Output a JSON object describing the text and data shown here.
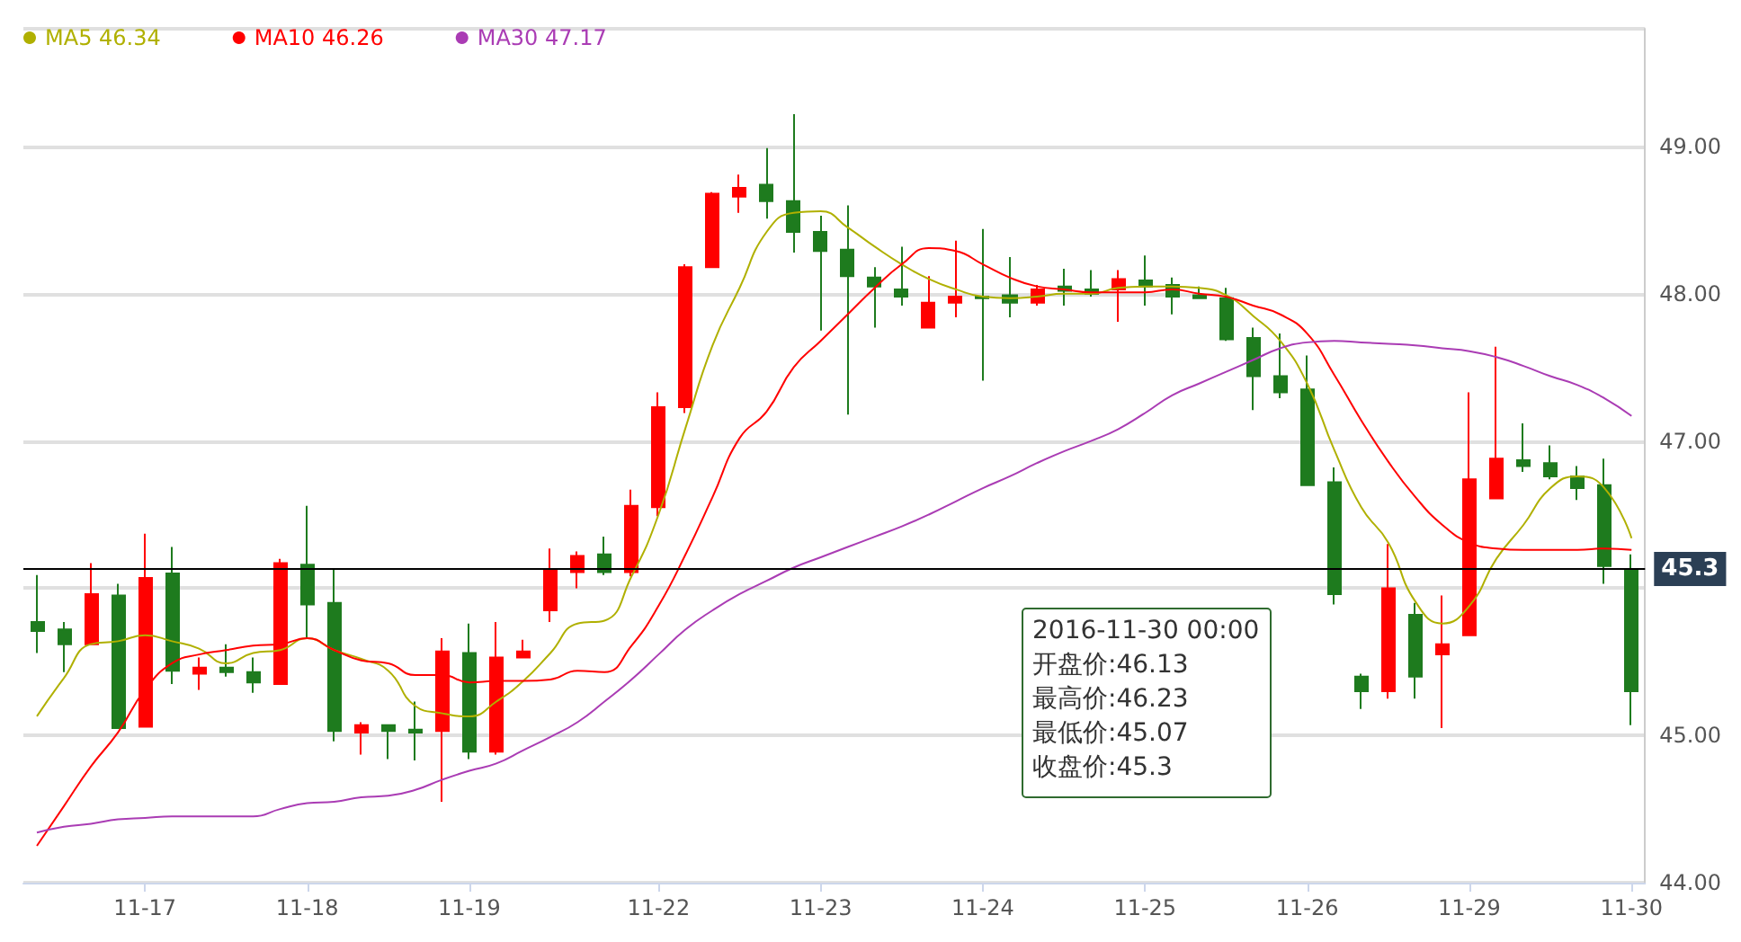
{
  "chart_data": {
    "type": "candlestick",
    "categories": [
      null,
      null,
      null,
      null,
      "11-17",
      null,
      null,
      null,
      null,
      null,
      "11-18",
      null,
      null,
      null,
      null,
      null,
      "11-19",
      null,
      null,
      null,
      null,
      null,
      null,
      "11-22",
      null,
      null,
      null,
      null,
      null,
      "11-23",
      null,
      null,
      null,
      null,
      null,
      "11-24",
      null,
      null,
      null,
      null,
      null,
      "11-25",
      null,
      null,
      null,
      null,
      null,
      "11-26",
      null,
      null,
      null,
      null,
      null,
      "11-29",
      null,
      null,
      null,
      null,
      null,
      "11-30"
    ],
    "ohlc": [
      [
        45.77,
        46.09,
        45.56,
        45.71
      ],
      [
        45.72,
        45.77,
        45.43,
        45.62
      ],
      [
        45.62,
        46.17,
        45.62,
        45.96
      ],
      [
        45.95,
        46.03,
        45.05,
        45.05
      ],
      [
        45.06,
        46.37,
        45.06,
        46.07
      ],
      [
        46.1,
        46.28,
        45.35,
        45.44
      ],
      [
        45.42,
        45.53,
        45.31,
        45.46
      ],
      [
        45.46,
        45.62,
        45.4,
        45.43
      ],
      [
        45.43,
        45.53,
        45.29,
        45.36
      ],
      [
        45.35,
        46.2,
        45.35,
        46.17
      ],
      [
        46.16,
        46.56,
        45.66,
        45.89
      ],
      [
        45.9,
        46.13,
        44.96,
        45.03
      ],
      [
        45.02,
        45.09,
        44.87,
        45.07
      ],
      [
        45.07,
        45.07,
        44.84,
        45.03
      ],
      [
        45.04,
        45.23,
        44.83,
        45.02
      ],
      [
        45.03,
        45.66,
        44.55,
        45.57
      ],
      [
        45.56,
        45.76,
        44.84,
        44.89
      ],
      [
        44.89,
        45.77,
        44.87,
        45.53
      ],
      [
        45.53,
        45.65,
        45.53,
        45.57
      ],
      [
        45.85,
        46.27,
        45.77,
        46.13
      ],
      [
        46.11,
        46.25,
        46.0,
        46.22
      ],
      [
        46.23,
        46.35,
        46.09,
        46.11
      ],
      [
        46.11,
        46.67,
        46.08,
        46.56
      ],
      [
        46.55,
        47.33,
        46.49,
        47.23
      ],
      [
        47.23,
        48.2,
        47.19,
        48.18
      ],
      [
        48.18,
        48.69,
        48.18,
        48.68
      ],
      [
        48.66,
        48.81,
        48.55,
        48.72
      ],
      [
        48.74,
        48.99,
        48.51,
        48.63
      ],
      [
        48.63,
        49.22,
        48.28,
        48.42
      ],
      [
        48.42,
        48.53,
        47.75,
        48.29
      ],
      [
        48.3,
        48.6,
        47.18,
        48.12
      ],
      [
        48.11,
        48.18,
        47.77,
        48.05
      ],
      [
        48.03,
        48.32,
        47.92,
        47.98
      ],
      [
        47.77,
        48.12,
        47.77,
        47.94
      ],
      [
        47.94,
        48.36,
        47.84,
        47.98
      ],
      [
        47.98,
        48.44,
        47.41,
        47.97
      ],
      [
        47.99,
        48.25,
        47.84,
        47.94
      ],
      [
        47.94,
        48.06,
        47.92,
        48.03
      ],
      [
        48.05,
        48.17,
        47.92,
        48.02
      ],
      [
        48.03,
        48.16,
        47.98,
        48.0
      ],
      [
        48.03,
        48.16,
        47.81,
        48.1
      ],
      [
        48.09,
        48.26,
        47.92,
        48.05
      ],
      [
        48.06,
        48.11,
        47.86,
        47.98
      ],
      [
        47.99,
        48.05,
        47.97,
        47.97
      ],
      [
        47.97,
        48.04,
        47.68,
        47.69
      ],
      [
        47.7,
        47.77,
        47.21,
        47.44
      ],
      [
        47.44,
        47.73,
        47.29,
        47.33
      ],
      [
        47.35,
        47.58,
        46.7,
        46.7
      ],
      [
        46.72,
        46.82,
        45.89,
        45.96
      ],
      [
        45.4,
        45.42,
        45.18,
        45.3
      ],
      [
        45.3,
        46.3,
        45.25,
        46.0
      ],
      [
        45.82,
        45.9,
        45.25,
        45.4
      ],
      [
        45.55,
        45.95,
        45.05,
        45.62
      ],
      [
        45.68,
        47.33,
        45.68,
        46.74
      ],
      [
        46.61,
        47.64,
        46.61,
        46.88
      ],
      [
        46.87,
        47.12,
        46.79,
        46.83
      ],
      [
        46.85,
        46.97,
        46.74,
        46.76
      ],
      [
        46.76,
        46.83,
        46.6,
        46.68
      ],
      [
        46.7,
        46.88,
        46.03,
        46.15
      ],
      [
        46.13,
        46.23,
        45.07,
        45.3
      ]
    ],
    "colors": [
      "#1e7b1e",
      "#1e7b1e",
      "#ff0000",
      "#1e7b1e",
      "#ff0000",
      "#1e7b1e",
      "#ff0000",
      "#1e7b1e",
      "#1e7b1e",
      "#ff0000",
      "#1e7b1e",
      "#1e7b1e",
      "#ff0000",
      "#1e7b1e",
      "#1e7b1e",
      "#ff0000",
      "#1e7b1e",
      "#ff0000",
      "#ff0000",
      "#ff0000",
      "#ff0000",
      "#1e7b1e",
      "#ff0000",
      "#ff0000",
      "#ff0000",
      "#ff0000",
      "#ff0000",
      "#1e7b1e",
      "#1e7b1e",
      "#1e7b1e",
      "#1e7b1e",
      "#1e7b1e",
      "#1e7b1e",
      "#ff0000",
      "#ff0000",
      "#1e7b1e",
      "#1e7b1e",
      "#ff0000",
      "#1e7b1e",
      "#1e7b1e",
      "#ff0000",
      "#1e7b1e",
      "#1e7b1e",
      "#1e7b1e",
      "#1e7b1e",
      "#1e7b1e",
      "#1e7b1e",
      "#1e7b1e",
      "#1e7b1e",
      "#1e7b1e",
      "#ff0000",
      "#1e7b1e",
      "#ff0000",
      "#ff0000",
      "#ff0000",
      "#1e7b1e",
      "#1e7b1e",
      "#1e7b1e",
      "#1e7b1e",
      "#1e7b1e"
    ],
    "series": [
      {
        "name": "MA5 46.34",
        "type": "line",
        "color": "#b0b000",
        "values": [
          45.13,
          45.39,
          45.62,
          45.64,
          45.68,
          45.64,
          45.59,
          45.49,
          45.56,
          45.58,
          45.66,
          45.58,
          45.52,
          45.44,
          45.2,
          45.15,
          45.13,
          45.23,
          45.37,
          45.56,
          45.76,
          45.78,
          46.08,
          46.5,
          47.09,
          47.65,
          48.04,
          48.42,
          48.55,
          48.56,
          48.45,
          48.32,
          48.2,
          48.1,
          48.03,
          47.98,
          47.97,
          47.98,
          48.0,
          48.0,
          48.04,
          48.05,
          48.05,
          48.04,
          47.99,
          47.85,
          47.68,
          47.39,
          46.94,
          46.55,
          46.31,
          45.91,
          45.76,
          45.88,
          46.2,
          46.43,
          46.68,
          46.76,
          46.68,
          46.34
        ]
      },
      {
        "name": "MA10 46.26",
        "type": "line",
        "color": "#ff0000",
        "values": [
          44.25,
          44.52,
          44.79,
          45.02,
          45.31,
          45.49,
          45.55,
          45.58,
          45.61,
          45.62,
          45.66,
          45.58,
          45.51,
          45.49,
          45.41,
          45.41,
          45.36,
          45.37,
          45.37,
          45.38,
          45.44,
          45.43,
          45.61,
          45.88,
          46.23,
          46.62,
          47.02,
          47.2,
          47.5,
          47.68,
          47.86,
          48.04,
          48.2,
          48.31,
          48.29,
          48.2,
          48.11,
          48.05,
          48.03,
          48.01,
          48.01,
          48.01,
          48.03,
          48.0,
          47.98,
          47.92,
          47.86,
          47.73,
          47.45,
          47.14,
          46.86,
          46.62,
          46.43,
          46.31,
          46.27,
          46.26,
          46.26,
          46.26,
          46.27,
          46.26
        ]
      },
      {
        "name": "MA30 47.17",
        "type": "line",
        "color": "#aa3cb4",
        "values": [
          44.34,
          44.38,
          44.4,
          44.43,
          44.44,
          44.45,
          44.45,
          44.45,
          44.45,
          44.5,
          44.54,
          44.55,
          44.58,
          44.59,
          44.63,
          44.7,
          44.76,
          44.81,
          44.9,
          44.99,
          45.09,
          45.23,
          45.38,
          45.55,
          45.72,
          45.85,
          45.96,
          46.05,
          46.14,
          46.21,
          46.28,
          46.35,
          46.42,
          46.5,
          46.59,
          46.68,
          46.76,
          46.85,
          46.93,
          47.0,
          47.08,
          47.19,
          47.31,
          47.39,
          47.47,
          47.55,
          47.63,
          47.67,
          47.68,
          47.67,
          47.66,
          47.65,
          47.63,
          47.61,
          47.57,
          47.51,
          47.44,
          47.38,
          47.29,
          47.17
        ]
      }
    ],
    "ylim": [
      44,
      49.8
    ],
    "yticks": [
      {
        "value": 44,
        "label": "44.00"
      },
      {
        "value": 45,
        "label": "45.00"
      },
      {
        "value": 46,
        "label": null
      },
      {
        "value": 47,
        "label": "47.00"
      },
      {
        "value": 48,
        "label": "48.00"
      },
      {
        "value": 49,
        "label": "49.00"
      }
    ],
    "grid": "y",
    "legend": "top left",
    "marker": "none",
    "ref_lines": [
      {
        "axis": "y",
        "value": 46.13,
        "color": "#000000"
      }
    ],
    "annotations": [
      "45.3",
      "2016-11-30 00:00",
      "开盘价:46.13",
      "最高价:46.23",
      "最低价:45.07",
      "收盘价:45.3"
    ]
  }
}
